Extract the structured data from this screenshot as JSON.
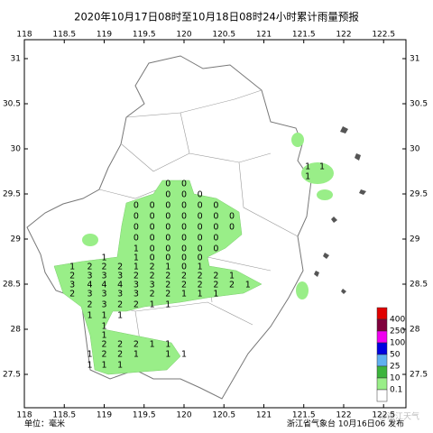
{
  "chart_data": {
    "type": "map",
    "title": "2020年10月17日08时至10月18日08时24小时累计雨量预报",
    "xlim": [
      118,
      122.78
    ],
    "ylim": [
      27.13,
      31.21
    ],
    "xticks": [
      118,
      118.5,
      119,
      119.5,
      120,
      120.5,
      121,
      121.5,
      122,
      122.5
    ],
    "yticks": [
      27.5,
      28,
      28.5,
      29,
      29.5,
      30,
      30.5,
      31
    ],
    "rows": [
      {
        "lat": 29.8,
        "lons": [
          121.55,
          121.73
        ],
        "values": [
          1,
          1
        ]
      },
      {
        "lat": 29.69,
        "lons": [
          121.55
        ],
        "values": [
          1
        ]
      },
      {
        "lat": 29.61,
        "lons": [
          119.8,
          120.0
        ],
        "values": [
          0,
          0
        ]
      },
      {
        "lat": 29.49,
        "lons": [
          119.8,
          120.0,
          120.2
        ],
        "values": [
          0,
          0,
          0
        ]
      },
      {
        "lat": 29.37,
        "lons": [
          119.4,
          119.6,
          119.8,
          120.0,
          120.2,
          120.4
        ],
        "values": [
          0,
          0,
          0,
          0,
          0,
          0
        ]
      },
      {
        "lat": 29.25,
        "lons": [
          119.4,
          119.6,
          119.8,
          120.0,
          120.2,
          120.4,
          120.6
        ],
        "values": [
          0,
          0,
          0,
          0,
          0,
          0,
          0
        ]
      },
      {
        "lat": 29.13,
        "lons": [
          119.4,
          119.6,
          119.8,
          120.0,
          120.2,
          120.4,
          120.6
        ],
        "values": [
          0,
          0,
          0,
          0,
          0,
          0,
          0
        ]
      },
      {
        "lat": 29.01,
        "lons": [
          119.4,
          119.6,
          119.8,
          120.0,
          120.2,
          120.4
        ],
        "values": [
          0,
          0,
          0,
          0,
          0,
          0
        ]
      },
      {
        "lat": 28.89,
        "lons": [
          119.4,
          119.6,
          119.8,
          120.0,
          120.2,
          120.4
        ],
        "values": [
          1,
          0,
          0,
          0,
          0,
          0
        ]
      },
      {
        "lat": 28.79,
        "lons": [
          119.0,
          119.4,
          119.6,
          119.8,
          120.0,
          120.2
        ],
        "values": [
          1,
          1,
          0,
          0,
          0,
          0
        ]
      },
      {
        "lat": 28.69,
        "lons": [
          118.6,
          118.82,
          119.0,
          119.2,
          119.4,
          119.6,
          119.8,
          120.0,
          120.2
        ],
        "values": [
          1,
          2,
          2,
          2,
          1,
          2,
          1,
          0,
          1
        ]
      },
      {
        "lat": 28.59,
        "lons": [
          118.6,
          118.82,
          119.0,
          119.2,
          119.4,
          119.6,
          119.8,
          120.0,
          120.2,
          120.4,
          120.6
        ],
        "values": [
          2,
          3,
          3,
          3,
          2,
          2,
          2,
          2,
          2,
          2,
          1
        ]
      },
      {
        "lat": 28.49,
        "lons": [
          118.6,
          118.82,
          119.0,
          119.2,
          119.4,
          119.6,
          119.8,
          120.0,
          120.2,
          120.4,
          120.6,
          120.8
        ],
        "values": [
          3,
          4,
          4,
          4,
          3,
          3,
          2,
          2,
          2,
          2,
          2,
          1
        ]
      },
      {
        "lat": 28.39,
        "lons": [
          118.6,
          118.82,
          119.0,
          119.2,
          119.4,
          119.6,
          119.8,
          120.0,
          120.2,
          120.4
        ],
        "values": [
          2,
          3,
          3,
          3,
          3,
          2,
          2,
          1,
          1,
          1
        ]
      },
      {
        "lat": 28.27,
        "lons": [
          118.82,
          119.0,
          119.2,
          119.4,
          119.6,
          119.8
        ],
        "values": [
          2,
          3,
          2,
          2,
          1,
          1
        ]
      },
      {
        "lat": 28.15,
        "lons": [
          118.82,
          119.0,
          119.2
        ],
        "values": [
          1,
          1,
          1
        ]
      },
      {
        "lat": 28.03,
        "lons": [
          119.0
        ],
        "values": [
          1
        ]
      },
      {
        "lat": 27.93,
        "lons": [
          119.0
        ],
        "values": [
          1
        ]
      },
      {
        "lat": 27.83,
        "lons": [
          119.0,
          119.2,
          119.4,
          119.6,
          119.8
        ],
        "values": [
          2,
          2,
          2,
          1,
          1
        ]
      },
      {
        "lat": 27.72,
        "lons": [
          118.82,
          119.0,
          119.2,
          119.4,
          119.8,
          120.0
        ],
        "values": [
          1,
          2,
          2,
          1,
          1,
          1
        ]
      },
      {
        "lat": 27.6,
        "lons": [
          118.82,
          119.0,
          119.2
        ],
        "values": [
          1,
          1,
          1
        ]
      }
    ],
    "legend": {
      "colors": [
        "#e00000",
        "#80003c",
        "#f000f0",
        "#0000e0",
        "#60b0f0",
        "#3cb43c",
        "#99ee88",
        "#ffffff"
      ],
      "labels": [
        400,
        250,
        100,
        50,
        25,
        10,
        0.1
      ]
    },
    "unit": "单位：毫米",
    "source": "浙江省气象台 10月16日06 发布",
    "watermark": "@浙江天气"
  }
}
